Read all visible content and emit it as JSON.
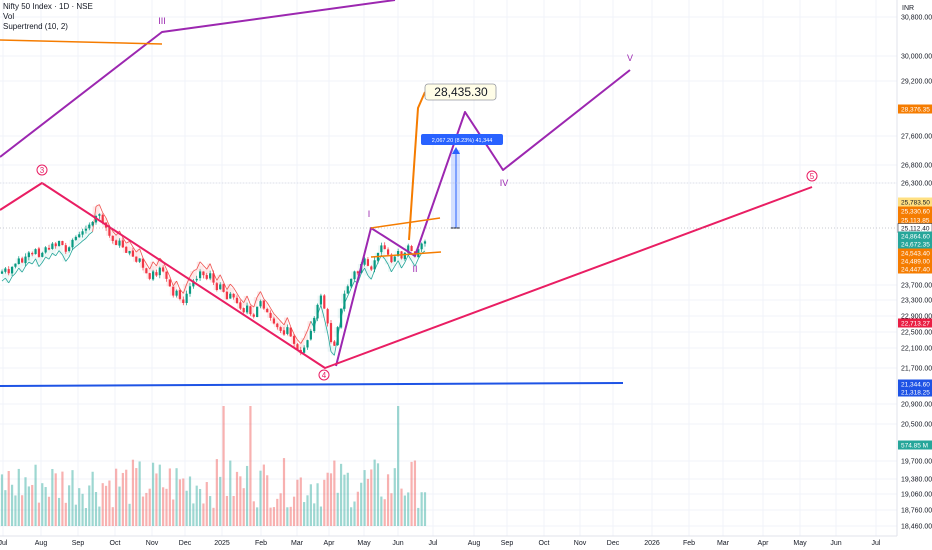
{
  "legend": {
    "symbol": "Nifty 50 Index · 1D · NSE",
    "vol": "Vol",
    "supertrend": "Supertrend (10, 2)"
  },
  "chart_data": {
    "type": "candlestick",
    "title": "Nifty 50 Index · 1D · NSE",
    "currency": "INR",
    "price_axis": {
      "ticks": [
        "30,800.00",
        "30,000.00",
        "29,200.00",
        "27,600.00",
        "26,800.00",
        "26,300.00",
        "23,700.00",
        "23,300.00",
        "22,900.00",
        "22,500.00",
        "22,100.00",
        "21,700.00",
        "20,900.00",
        "20,500.00",
        "19,700.00",
        "19,380.00",
        "19,060.00",
        "18,760.00",
        "18,460.00"
      ],
      "markers": [
        {
          "label": "28,376.35",
          "color": "#f57c00"
        },
        {
          "label": "25,783.50",
          "color": "#ffe082",
          "text": "#131722"
        },
        {
          "label": "25,330.60",
          "color": "#f57c00"
        },
        {
          "label": "25,113.85",
          "color": "#f57c00"
        },
        {
          "label": "25,112.40",
          "color": "#ffffff",
          "text": "#131722"
        },
        {
          "label": "24,864.60",
          "color": "#26a69a"
        },
        {
          "label": "24,672.35",
          "color": "#26a69a"
        },
        {
          "label": "24,543.40",
          "color": "#f57c00"
        },
        {
          "label": "24,489.00",
          "color": "#f57c00"
        },
        {
          "label": "24,447.40",
          "color": "#f57c00"
        },
        {
          "label": "22,713.27",
          "color": "#e91e43"
        },
        {
          "label": "21,344.60",
          "color": "#1e53e5"
        },
        {
          "label": "21,318.25",
          "color": "#1e53e5"
        },
        {
          "label": "574.85 M",
          "color": "#26a69a"
        }
      ]
    },
    "time_axis": [
      "Jul",
      "Aug",
      "Sep",
      "Oct",
      "Nov",
      "Dec",
      "2025",
      "Feb",
      "Mar",
      "Apr",
      "May",
      "Jun",
      "Jul",
      "Aug",
      "Sep",
      "Oct",
      "Nov",
      "Dec",
      "2026",
      "Feb",
      "Mar",
      "Apr",
      "May",
      "Jun",
      "Jul"
    ],
    "closes": [
      24300,
      24380,
      24250,
      24420,
      24510,
      24650,
      24540,
      24700,
      24810,
      24760,
      24900,
      24690,
      24800,
      24950,
      24890,
      25050,
      24980,
      25120,
      25010,
      24830,
      24950,
      25150,
      25230,
      25300,
      25380,
      25450,
      25560,
      25630,
      25790,
      25840,
      25620,
      25480,
      25260,
      25120,
      25010,
      25130,
      24950,
      24800,
      24850,
      24700,
      24560,
      24650,
      24400,
      24250,
      24100,
      24300,
      24190,
      24400,
      24300,
      24100,
      23900,
      23650,
      23780,
      23560,
      23450,
      23700,
      23900,
      24050,
      24100,
      24300,
      24200,
      24100,
      24250,
      24000,
      23800,
      23950,
      23750,
      23550,
      23700,
      23600,
      23450,
      23300,
      23200,
      23380,
      23150,
      23080,
      23350,
      23500,
      23300,
      23200,
      23050,
      22900,
      22800,
      22700,
      22600,
      22800,
      22550,
      22350,
      22200,
      22100,
      22250,
      22450,
      22700,
      23050,
      23400,
      23650,
      23300,
      22900,
      22400,
      22300,
      22800,
      23300,
      23700,
      23900,
      24100,
      24300,
      24250,
      24500,
      24650,
      24450,
      24350,
      24600,
      24800,
      25000,
      24900,
      24750,
      24550,
      24700,
      24850,
      24650,
      24800,
      25000,
      24850,
      24700,
      24900,
      25050,
      25110
    ],
    "volume_note": "Vol",
    "annotations": [
      {
        "label": "28,435.30"
      },
      {
        "label": "2,067.20 (8.23%) 41,344"
      },
      {
        "label": "I"
      },
      {
        "label": "II"
      },
      {
        "label": "III"
      },
      {
        "label": "IV"
      },
      {
        "label": "V"
      },
      {
        "label": "3"
      },
      {
        "label": "4"
      },
      {
        "label": "5"
      }
    ]
  }
}
